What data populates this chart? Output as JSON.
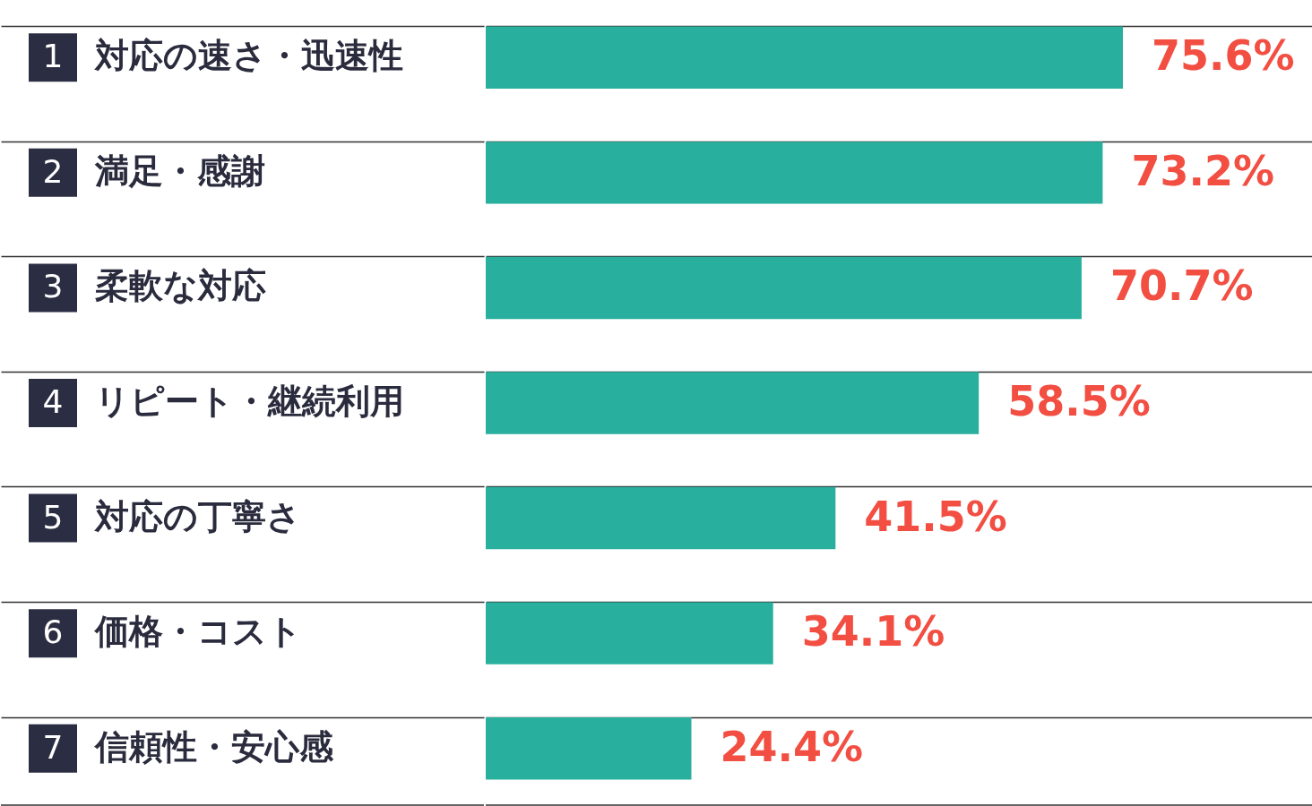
{
  "chart_data": {
    "type": "bar",
    "orientation": "horizontal",
    "categories": [
      "対応の速さ・迅速性",
      "満足・感謝",
      "柔軟な対応",
      "リピート・継続利用",
      "対応の丁寧さ",
      "価格・コスト",
      "信頼性・安心感"
    ],
    "values": [
      75.6,
      73.2,
      70.7,
      58.5,
      41.5,
      34.1,
      24.4
    ],
    "color": "#29af9e",
    "value_labels": [
      "75.6%",
      "73.2%",
      "70.7%",
      "58.5%",
      "41.5%",
      "34.1%",
      "24.4%"
    ],
    "annotations": [
      "1",
      "2",
      "3",
      "4",
      "5",
      "6",
      "7"
    ],
    "grid": "y"
  }
}
